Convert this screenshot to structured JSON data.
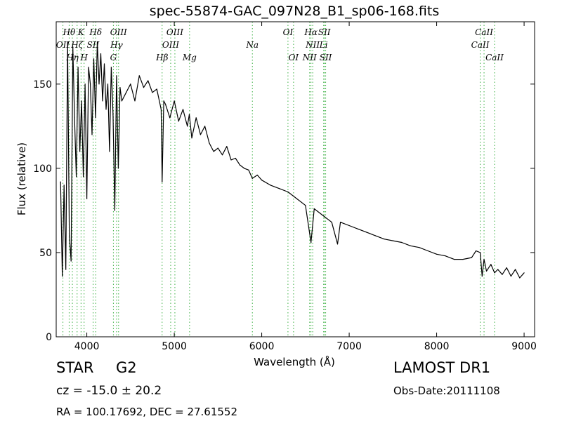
{
  "chart_data": {
    "type": "line",
    "title": "spec-55874-GAC_097N28_B1_sp06-168.fits",
    "xlabel": "Wavelength (Å)",
    "ylabel": "Flux (relative)",
    "xlim": [
      3650,
      9120
    ],
    "ylim": [
      0,
      187
    ],
    "xticks": [
      4000,
      5000,
      6000,
      7000,
      8000,
      9000
    ],
    "yticks": [
      0,
      50,
      100,
      150
    ],
    "grid": false,
    "series": [
      {
        "color": "#000000",
        "x": [
          3700,
          3720,
          3740,
          3760,
          3780,
          3800,
          3820,
          3840,
          3860,
          3880,
          3900,
          3920,
          3940,
          3960,
          3980,
          4000,
          4020,
          4040,
          4060,
          4080,
          4100,
          4120,
          4140,
          4160,
          4180,
          4200,
          4220,
          4240,
          4260,
          4280,
          4300,
          4320,
          4340,
          4360,
          4380,
          4400,
          4450,
          4500,
          4550,
          4600,
          4650,
          4700,
          4750,
          4800,
          4850,
          4861,
          4880,
          4900,
          4950,
          5000,
          5050,
          5100,
          5150,
          5172,
          5200,
          5250,
          5300,
          5350,
          5400,
          5450,
          5500,
          5550,
          5600,
          5650,
          5700,
          5750,
          5800,
          5850,
          5893,
          5950,
          6000,
          6100,
          6200,
          6300,
          6400,
          6500,
          6563,
          6600,
          6700,
          6800,
          6867,
          6900,
          7000,
          7100,
          7200,
          7300,
          7400,
          7500,
          7600,
          7700,
          7800,
          7900,
          8000,
          8100,
          8200,
          8300,
          8400,
          8450,
          8498,
          8520,
          8542,
          8570,
          8620,
          8662,
          8700,
          8750,
          8800,
          8850,
          8900,
          8950,
          9000
        ],
        "values": [
          92,
          36,
          90,
          40,
          175,
          60,
          45,
          172,
          130,
          95,
          160,
          110,
          140,
          95,
          150,
          82,
          160,
          150,
          120,
          165,
          130,
          175,
          150,
          168,
          140,
          162,
          135,
          150,
          110,
          160,
          132,
          75,
          155,
          100,
          148,
          140,
          145,
          150,
          140,
          155,
          148,
          152,
          145,
          147,
          135,
          92,
          140,
          138,
          130,
          140,
          128,
          135,
          125,
          132,
          118,
          130,
          120,
          125,
          115,
          110,
          112,
          108,
          113,
          105,
          106,
          102,
          100,
          99,
          94,
          96,
          93,
          90,
          88,
          86,
          82,
          78,
          56,
          76,
          72,
          68,
          55,
          68,
          66,
          64,
          62,
          60,
          58,
          57,
          56,
          54,
          53,
          51,
          49,
          48,
          46,
          46,
          47,
          51,
          50,
          36,
          46,
          39,
          43,
          38,
          40,
          37,
          41,
          36,
          40,
          35,
          38
        ]
      }
    ],
    "lines": [
      {
        "name": "OII",
        "x": 3727,
        "row": 2
      },
      {
        "name": "Hθ",
        "x": 3798,
        "row": 1
      },
      {
        "name": "Hη",
        "x": 3835,
        "row": 3
      },
      {
        "name": "Hζ",
        "x": 3889,
        "row": 2
      },
      {
        "name": "K",
        "x": 3934,
        "row": 1
      },
      {
        "name": "H",
        "x": 3969,
        "row": 3
      },
      {
        "name": "SII",
        "x": 4072,
        "row": 2
      },
      {
        "name": "Hδ",
        "x": 4102,
        "row": 1
      },
      {
        "name": "G",
        "x": 4304,
        "row": 3
      },
      {
        "name": "Hγ",
        "x": 4340,
        "row": 2
      },
      {
        "name": "OIII",
        "x": 4363,
        "row": 1
      },
      {
        "name": "Hβ",
        "x": 4861,
        "row": 3
      },
      {
        "name": "OIII",
        "x": 4959,
        "row": 2
      },
      {
        "name": "OIII",
        "x": 5007,
        "row": 1
      },
      {
        "name": "Mg",
        "x": 5175,
        "row": 3
      },
      {
        "name": "Na",
        "x": 5893,
        "row": 2
      },
      {
        "name": "OI",
        "x": 6300,
        "row": 1
      },
      {
        "name": "OI",
        "x": 6364,
        "row": 3
      },
      {
        "name": "NII",
        "x": 6548,
        "row": 3
      },
      {
        "name": "Hα",
        "x": 6563,
        "row": 1
      },
      {
        "name": "NII",
        "x": 6583,
        "row": 2
      },
      {
        "name": "Li",
        "x": 6708,
        "row": 2
      },
      {
        "name": "SII",
        "x": 6716,
        "row": 1
      },
      {
        "name": "SII",
        "x": 6731,
        "row": 3
      },
      {
        "name": "CaII",
        "x": 8498,
        "row": 2
      },
      {
        "name": "CaII",
        "x": 8542,
        "row": 1
      },
      {
        "name": "CaII",
        "x": 8662,
        "row": 3
      }
    ]
  },
  "info": {
    "class": "STAR",
    "subclass": "G2",
    "cz": "cz = -15.0 ± 20.2",
    "radec": "RA = 100.17692, DEC = 27.61552",
    "survey": "LAMOST DR1",
    "obs_date": "Obs-Date:20111108"
  }
}
